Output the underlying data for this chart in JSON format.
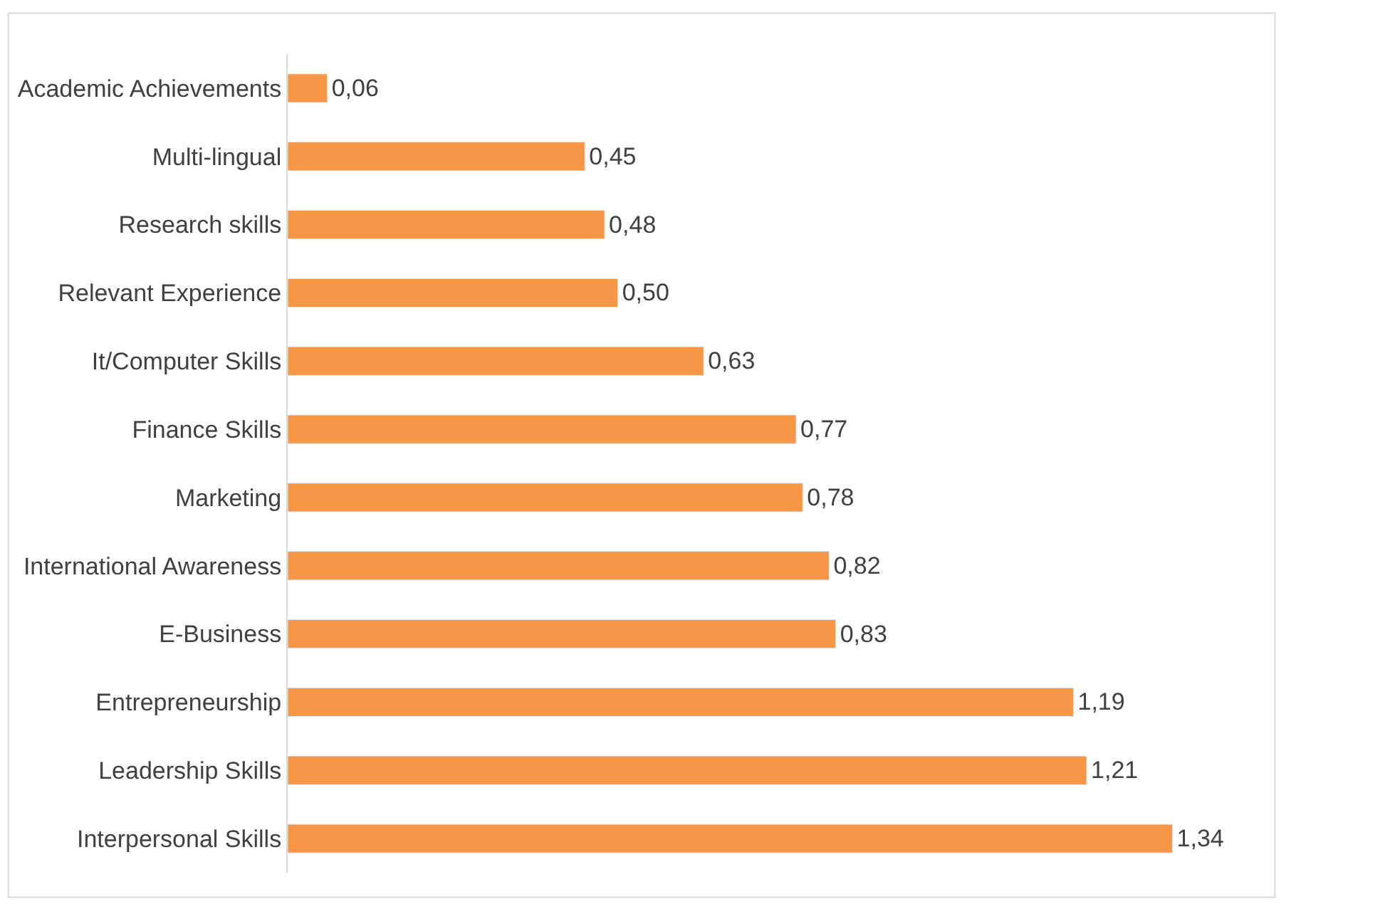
{
  "chart_data": {
    "type": "bar",
    "orientation": "horizontal",
    "categories": [
      "Academic Achievements",
      "Multi-lingual",
      "Research skills",
      "Relevant Experience",
      "It/Computer Skills",
      "Finance Skills",
      "Marketing",
      "International Awareness",
      "E-Business",
      "Entrepreneurship",
      "Leadership Skills",
      "Interpersonal Skills"
    ],
    "values": [
      0.06,
      0.45,
      0.48,
      0.5,
      0.63,
      0.77,
      0.78,
      0.82,
      0.83,
      1.19,
      1.21,
      1.34
    ],
    "value_labels": [
      "0,06",
      "0,45",
      "0,48",
      "0,50",
      "0,63",
      "0,77",
      "0,78",
      "0,82",
      "0,83",
      "1,19",
      "1,21",
      "1,34"
    ],
    "color": "#f79646",
    "tick_labels": "y"
  }
}
